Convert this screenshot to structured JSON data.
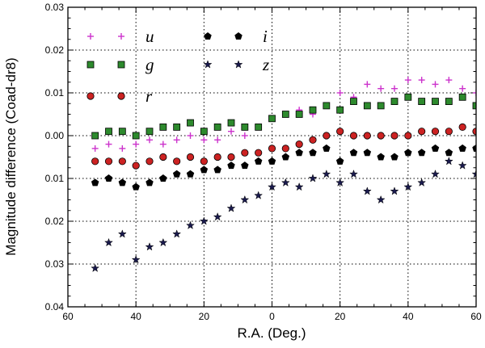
{
  "chart_data": {
    "type": "scatter",
    "title": "",
    "xlabel": "R.A. (Deg.)",
    "ylabel": "Magnitude difference (Coad-dr8)",
    "xlim": [
      -60,
      60
    ],
    "ylim": [
      -0.04,
      0.03
    ],
    "grid": true,
    "x_tick_values": [
      -60,
      -40,
      -20,
      0,
      20,
      40,
      60
    ],
    "x_tick_labels": [
      "60",
      "40",
      "20",
      "0",
      "20",
      "40",
      "60"
    ],
    "y_tick_values": [
      -0.04,
      -0.03,
      -0.02,
      -0.01,
      0.0,
      0.01,
      0.02,
      0.03
    ],
    "y_tick_labels": [
      "0.04",
      "0.03",
      "0.02",
      "0.01",
      "0.00",
      "0.01",
      "0.02",
      "0.03"
    ],
    "legend_position": "top-left",
    "series": [
      {
        "name": "u",
        "marker": "plus",
        "color": "#cc33cc",
        "x": [
          -52,
          -48,
          -44,
          -40,
          -36,
          -32,
          -28,
          -24,
          -20,
          -16,
          -12,
          -8,
          -4,
          0,
          4,
          8,
          12,
          16,
          20,
          24,
          28,
          32,
          36,
          40,
          44,
          48,
          52,
          56,
          60
        ],
        "y": [
          -0.003,
          -0.002,
          -0.003,
          -0.002,
          -0.001,
          -0.002,
          -0.001,
          0.0,
          -0.001,
          -0.001,
          0.001,
          0.0,
          0.002,
          0.004,
          0.005,
          0.006,
          0.005,
          0.007,
          0.01,
          0.009,
          0.012,
          0.011,
          0.011,
          0.013,
          0.013,
          0.012,
          0.013,
          0.011,
          0.01
        ]
      },
      {
        "name": "g",
        "marker": "square",
        "color": "#2d8a2d",
        "x": [
          -52,
          -48,
          -44,
          -40,
          -36,
          -32,
          -28,
          -24,
          -20,
          -16,
          -12,
          -8,
          -4,
          0,
          4,
          8,
          12,
          16,
          20,
          24,
          28,
          32,
          36,
          40,
          44,
          48,
          52,
          56,
          60
        ],
        "y": [
          0.0,
          0.001,
          0.001,
          0.0,
          0.001,
          0.002,
          0.002,
          0.003,
          0.001,
          0.002,
          0.003,
          0.002,
          0.002,
          0.004,
          0.005,
          0.005,
          0.006,
          0.007,
          0.006,
          0.008,
          0.007,
          0.007,
          0.008,
          0.009,
          0.008,
          0.008,
          0.008,
          0.009,
          0.007
        ]
      },
      {
        "name": "r",
        "marker": "circle",
        "color": "#cc2222",
        "x": [
          -52,
          -48,
          -44,
          -40,
          -36,
          -32,
          -28,
          -24,
          -20,
          -16,
          -12,
          -8,
          -4,
          0,
          4,
          8,
          12,
          16,
          20,
          24,
          28,
          32,
          36,
          40,
          44,
          48,
          52,
          56,
          60
        ],
        "y": [
          -0.006,
          -0.006,
          -0.006,
          -0.007,
          -0.006,
          -0.005,
          -0.006,
          -0.005,
          -0.006,
          -0.005,
          -0.005,
          -0.004,
          -0.004,
          -0.003,
          -0.003,
          -0.002,
          -0.001,
          0.0,
          0.001,
          0.0,
          0.0,
          0.0,
          0.0,
          0.0,
          0.001,
          0.001,
          0.001,
          0.002,
          0.001
        ]
      },
      {
        "name": "i",
        "marker": "pentagon",
        "color": "#000000",
        "x": [
          -52,
          -48,
          -44,
          -40,
          -36,
          -32,
          -28,
          -24,
          -20,
          -16,
          -12,
          -8,
          -4,
          0,
          4,
          8,
          12,
          16,
          20,
          24,
          28,
          32,
          36,
          40,
          44,
          48,
          52,
          56,
          60
        ],
        "y": [
          -0.011,
          -0.01,
          -0.011,
          -0.012,
          -0.011,
          -0.01,
          -0.009,
          -0.009,
          -0.008,
          -0.008,
          -0.007,
          -0.007,
          -0.006,
          -0.006,
          -0.005,
          -0.004,
          -0.004,
          -0.003,
          -0.006,
          -0.004,
          -0.004,
          -0.005,
          -0.005,
          -0.004,
          -0.004,
          -0.003,
          -0.004,
          -0.003,
          -0.003
        ]
      },
      {
        "name": "z",
        "marker": "star",
        "color": "#1a1a4d",
        "x": [
          -52,
          -48,
          -44,
          -40,
          -36,
          -32,
          -28,
          -24,
          -20,
          -16,
          -12,
          -8,
          -4,
          0,
          4,
          8,
          12,
          16,
          20,
          24,
          28,
          32,
          36,
          40,
          44,
          48,
          52,
          56,
          60
        ],
        "y": [
          -0.031,
          -0.025,
          -0.023,
          -0.029,
          -0.026,
          -0.025,
          -0.023,
          -0.021,
          -0.02,
          -0.019,
          -0.017,
          -0.015,
          -0.014,
          -0.012,
          -0.011,
          -0.012,
          -0.01,
          -0.009,
          -0.011,
          -0.009,
          -0.013,
          -0.015,
          -0.013,
          -0.012,
          -0.011,
          -0.009,
          -0.006,
          -0.007,
          -0.009
        ]
      }
    ]
  }
}
